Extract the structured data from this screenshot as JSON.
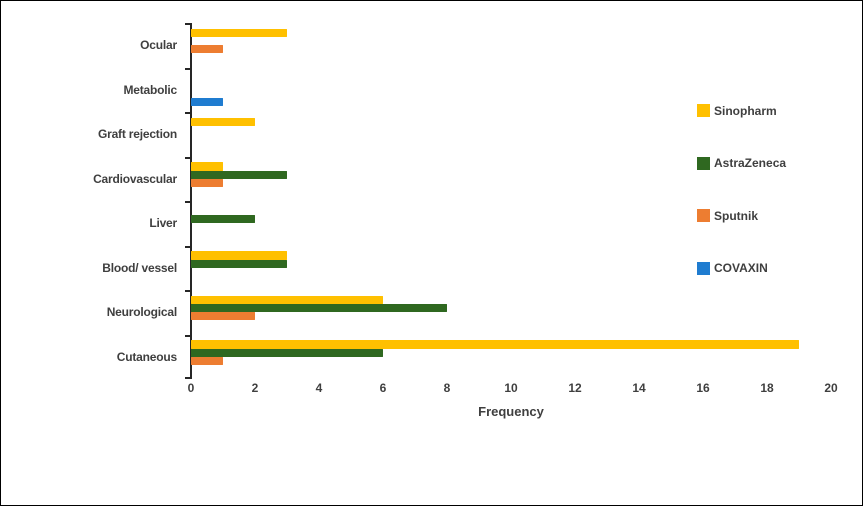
{
  "chart_data": {
    "type": "bar",
    "orientation": "horizontal",
    "title": "",
    "xlabel": "Frequency",
    "ylabel": "",
    "categories": [
      "Ocular",
      "Metabolic",
      "Graft rejection",
      "Cardiovascular",
      "Liver",
      "Blood/ vessel",
      "Neurological",
      "Cutaneous"
    ],
    "series": [
      {
        "name": "Sinopharm",
        "color": "#FFC000",
        "values": [
          3,
          0,
          2,
          1,
          0,
          3,
          6,
          19
        ]
      },
      {
        "name": "AstraZeneca",
        "color": "#2F6820",
        "values": [
          0,
          0,
          0,
          3,
          2,
          3,
          8,
          6
        ]
      },
      {
        "name": "Sputnik",
        "color": "#ED7D31",
        "values": [
          1,
          0,
          0,
          1,
          0,
          0,
          2,
          1
        ]
      },
      {
        "name": "COVAXIN",
        "color": "#1F7CD0",
        "values": [
          0,
          1,
          0,
          0,
          0,
          0,
          0,
          0
        ]
      }
    ],
    "xlim": [
      0,
      20
    ],
    "xticks": [
      0,
      2,
      4,
      6,
      8,
      10,
      12,
      14,
      16,
      18,
      20
    ],
    "grid": "off",
    "legend_position": "right",
    "axis_color": "#262626",
    "text_color": "#3f3f3f",
    "background_color": "#ffffff"
  }
}
